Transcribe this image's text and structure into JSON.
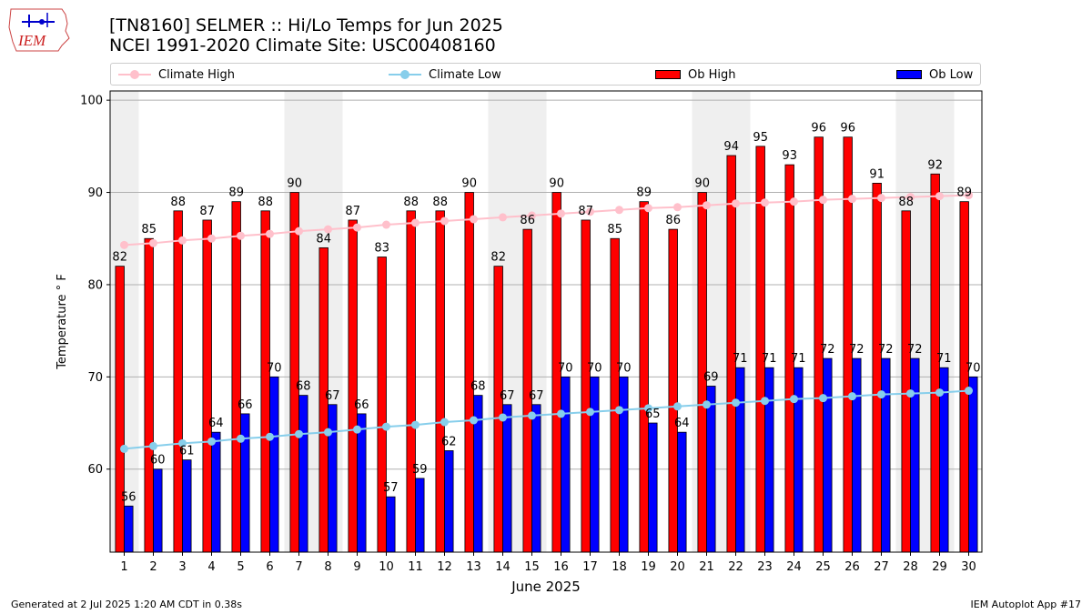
{
  "header": {
    "logo_text": "IEM",
    "title_line1": "[TN8160] SELMER :: Hi/Lo Temps for Jun 2025",
    "title_line2": "NCEI 1991-2020 Climate Site: USC00408160"
  },
  "footer": {
    "left": "Generated at 2 Jul 2025 1:20 AM CDT in 0.38s",
    "right": "IEM Autoplot App #17"
  },
  "colors": {
    "ob_high": "#ff0000",
    "ob_low": "#0000ff",
    "climate_high": "#ffc0cb",
    "climate_low": "#87ceeb",
    "weekend_band": "#efefef",
    "grid": "#b0b0b0"
  },
  "chart_data": {
    "type": "bar",
    "xlabel": "June 2025",
    "ylabel": "Temperature $^\\circ$F",
    "ylim": [
      51,
      101
    ],
    "yticks": [
      60,
      70,
      80,
      90,
      100
    ],
    "grid": true,
    "legend_placement": "top",
    "categories": [
      "1",
      "2",
      "3",
      "4",
      "5",
      "6",
      "7",
      "8",
      "9",
      "10",
      "11",
      "12",
      "13",
      "14",
      "15",
      "16",
      "17",
      "18",
      "19",
      "20",
      "21",
      "22",
      "23",
      "24",
      "25",
      "26",
      "27",
      "28",
      "29",
      "30"
    ],
    "weekend_days": [
      1,
      7,
      8,
      14,
      15,
      21,
      22,
      28,
      29
    ],
    "series": [
      {
        "name": "Ob High",
        "kind": "bar",
        "values": [
          82,
          85,
          88,
          87,
          89,
          88,
          90,
          84,
          87,
          83,
          88,
          88,
          90,
          82,
          86,
          90,
          87,
          85,
          89,
          86,
          90,
          94,
          95,
          93,
          96,
          96,
          91,
          88,
          92,
          89
        ]
      },
      {
        "name": "Ob Low",
        "kind": "bar",
        "values": [
          56,
          60,
          61,
          64,
          66,
          70,
          68,
          67,
          66,
          57,
          59,
          62,
          68,
          67,
          67,
          70,
          70,
          70,
          65,
          64,
          69,
          71,
          71,
          71,
          72,
          72,
          72,
          72,
          71,
          70
        ]
      },
      {
        "name": "Climate High",
        "kind": "line",
        "values": [
          84.3,
          84.5,
          84.8,
          85.0,
          85.3,
          85.5,
          85.8,
          86.0,
          86.2,
          86.5,
          86.7,
          86.9,
          87.1,
          87.3,
          87.5,
          87.7,
          87.9,
          88.1,
          88.3,
          88.4,
          88.6,
          88.8,
          88.9,
          89.0,
          89.2,
          89.3,
          89.4,
          89.5,
          89.6,
          89.7
        ]
      },
      {
        "name": "Climate Low",
        "kind": "line",
        "values": [
          62.2,
          62.5,
          62.8,
          63.0,
          63.3,
          63.5,
          63.8,
          64.0,
          64.3,
          64.6,
          64.8,
          65.1,
          65.3,
          65.6,
          65.8,
          66.0,
          66.2,
          66.4,
          66.6,
          66.8,
          67.0,
          67.2,
          67.4,
          67.6,
          67.7,
          67.9,
          68.1,
          68.2,
          68.3,
          68.5
        ]
      }
    ]
  }
}
